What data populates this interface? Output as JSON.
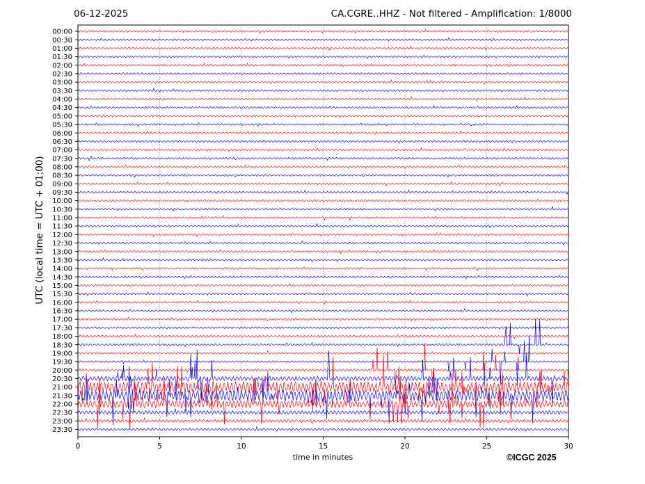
{
  "header": {
    "date": "06-12-2025",
    "title": "CA.CGRE..HHZ - Not filtered - Amplification: 1/8000"
  },
  "footer": {
    "copyright": "©ICGC 2025"
  },
  "colors": {
    "trace_a": "#ff0000",
    "trace_b": "#0000ff",
    "grid": "#6c6c8c"
  },
  "chart_data": {
    "type": "line",
    "xlabel": "time in minutes",
    "ylabel": "UTC (local time = UTC + 01:00)",
    "xlim": [
      0,
      30
    ],
    "xticks": [
      0,
      5,
      10,
      15,
      20,
      25,
      30
    ],
    "grid": "vertical dotted lines at x ticks",
    "trace_color_pattern": [
      "#ff0000",
      "#0000ff"
    ],
    "rows": [
      "00:00",
      "00:30",
      "01:00",
      "01:30",
      "02:00",
      "02:30",
      "03:00",
      "03:30",
      "04:00",
      "04:30",
      "05:00",
      "05:30",
      "06:00",
      "06:30",
      "07:00",
      "07:30",
      "08:00",
      "08:30",
      "09:00",
      "09:30",
      "10:00",
      "10:30",
      "11:00",
      "11:30",
      "12:00",
      "12:30",
      "13:00",
      "13:30",
      "14:00",
      "14:30",
      "15:00",
      "15:30",
      "16:00",
      "16:30",
      "17:00",
      "17:30",
      "18:00",
      "18:30",
      "19:00",
      "19:30",
      "20:00",
      "20:30",
      "21:00",
      "21:30",
      "22:00",
      "22:30",
      "23:00",
      "23:30"
    ],
    "relative_amplitude": [
      1,
      1,
      1,
      1,
      1,
      1,
      1,
      1,
      1,
      1,
      1,
      1,
      1,
      1,
      1,
      1,
      1,
      1,
      1,
      1,
      1,
      1,
      1,
      1,
      1,
      1,
      1,
      1,
      1,
      1,
      1,
      1,
      1,
      1,
      1,
      1,
      1,
      1,
      1,
      1,
      1.2,
      2.5,
      6,
      6,
      4,
      2,
      1.6,
      1.3
    ],
    "large_spikes": [
      {
        "row": "18:30",
        "x_from": 24.5,
        "x_to": 29.8
      },
      {
        "row": "19:30",
        "x_from": 22.5,
        "x_to": 30
      },
      {
        "row": "20:00",
        "x_from": 17.2,
        "x_to": 30
      },
      {
        "row": "20:30",
        "x_from": 0,
        "x_to": 30
      },
      {
        "row": "21:00",
        "x_from": 0,
        "x_to": 30
      },
      {
        "row": "21:30",
        "x_from": 0,
        "x_to": 30
      },
      {
        "row": "22:00",
        "x_from": 0,
        "x_to": 28
      }
    ]
  }
}
